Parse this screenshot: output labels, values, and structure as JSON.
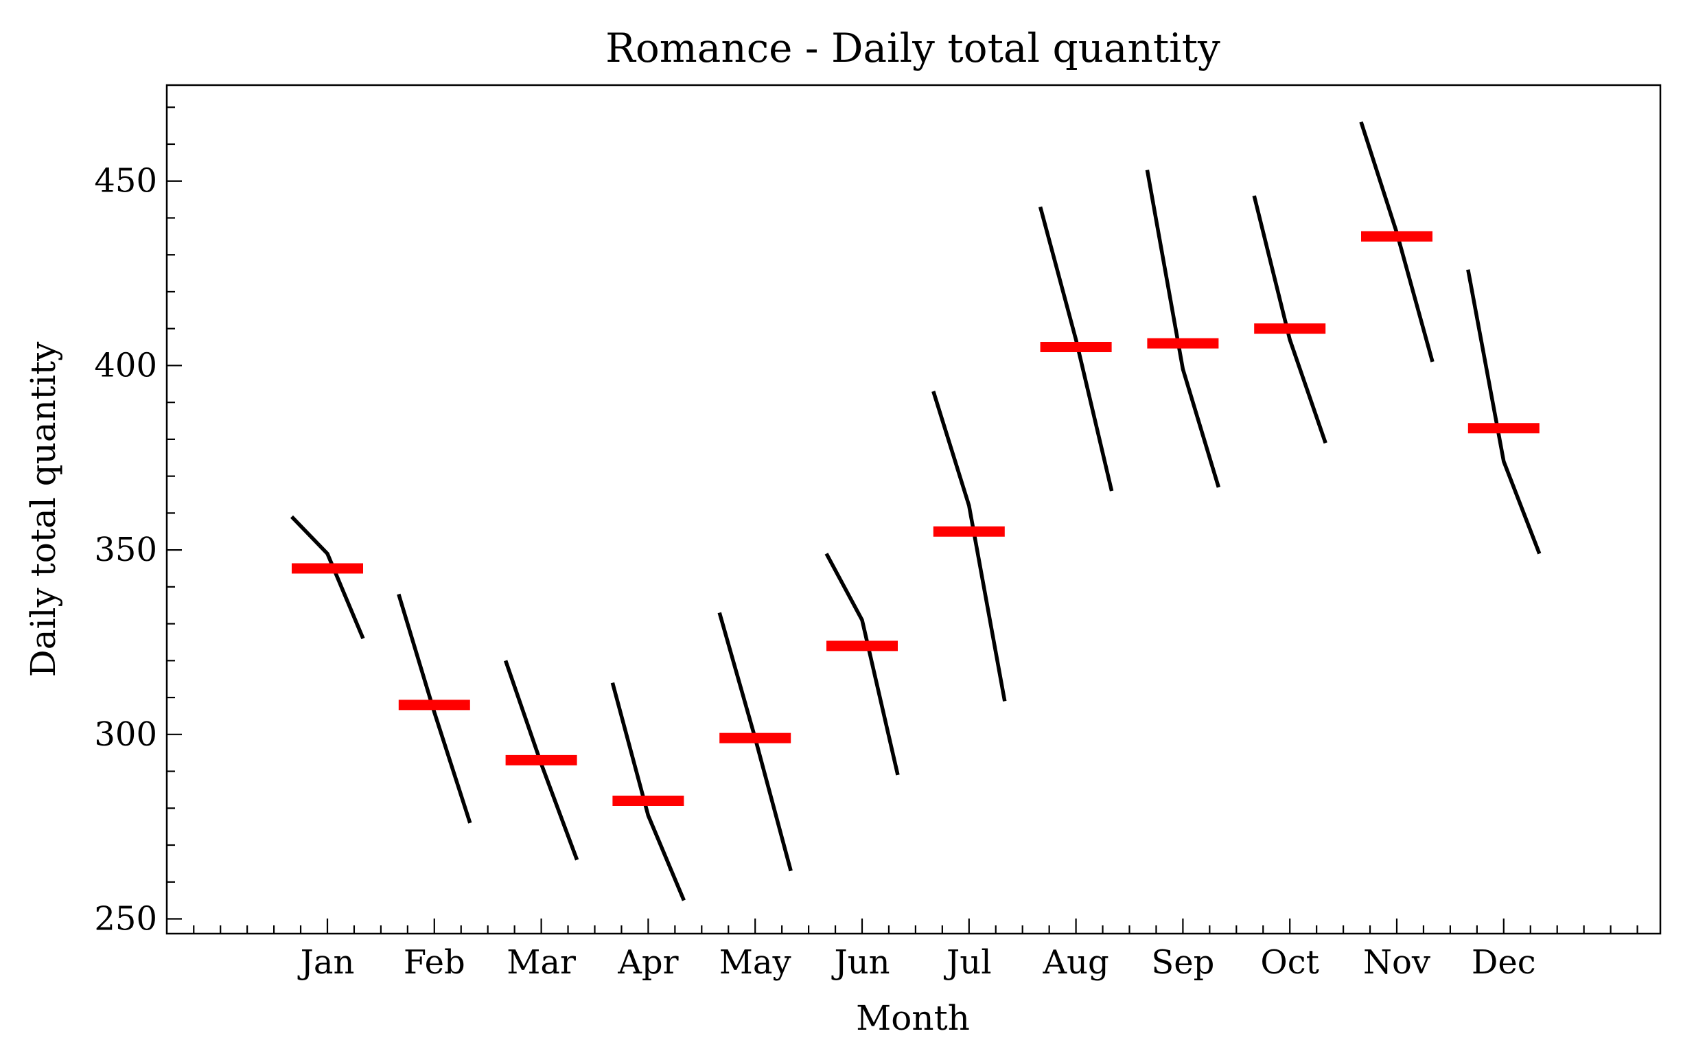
{
  "chart_data": {
    "type": "line",
    "title": "Romance - Daily total quantity",
    "xlabel": "Month",
    "ylabel": "Daily total quantity",
    "categories": [
      "Jan",
      "Feb",
      "Mar",
      "Apr",
      "May",
      "Jun",
      "Jul",
      "Aug",
      "Sep",
      "Oct",
      "Nov",
      "Dec"
    ],
    "ylim": [
      246,
      476
    ],
    "yticks": [
      250,
      300,
      350,
      400,
      450
    ],
    "grid": false,
    "means": [
      345,
      308,
      293,
      282,
      299,
      324,
      355,
      405,
      406,
      410,
      435,
      383
    ],
    "subseries": [
      [
        359,
        349,
        326
      ],
      [
        338,
        306,
        276
      ],
      [
        320,
        292,
        266
      ],
      [
        314,
        278,
        255
      ],
      [
        333,
        299,
        263
      ],
      [
        349,
        331,
        289
      ],
      [
        393,
        362,
        309
      ],
      [
        443,
        407,
        366
      ],
      [
        453,
        399,
        367
      ],
      [
        446,
        407,
        379
      ],
      [
        466,
        436,
        401
      ],
      [
        426,
        374,
        349
      ]
    ],
    "colors": {
      "line": "#000000",
      "mean": "#ff0000"
    }
  }
}
